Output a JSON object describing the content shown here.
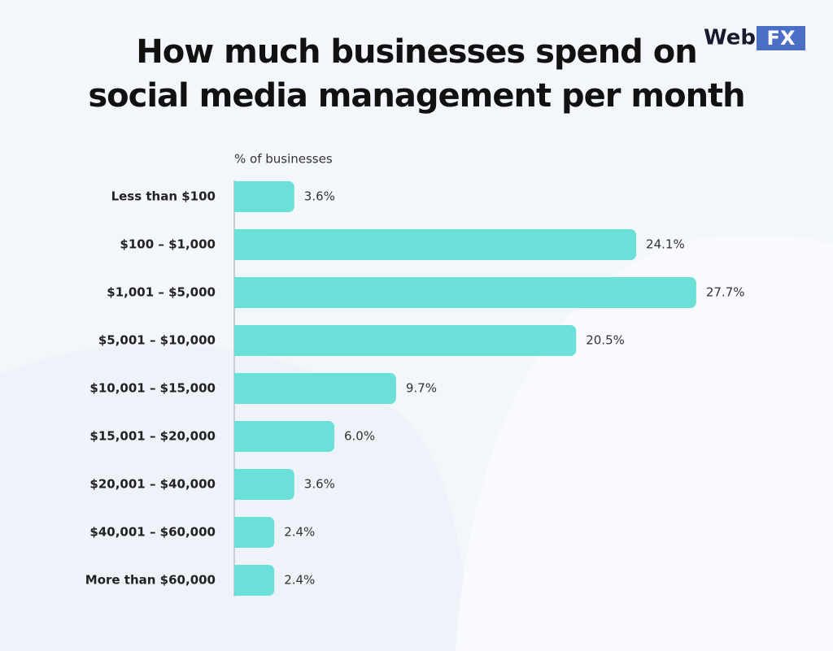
{
  "brand": [
    "Web",
    "FX"
  ],
  "chart_data": {
    "type": "bar",
    "orientation": "horizontal",
    "title": [
      "How much businesses spend on",
      "social media management per month"
    ],
    "axis_label": "% of businesses",
    "categories": [
      "Less than $100",
      "$100 – $1,000",
      "$1,001 – $5,000",
      "$5,001 – $10,000",
      "$10,001 – $15,000",
      "$15,001 – $20,000",
      "$20,001 – $40,000",
      "$40,001 – $60,000",
      "More than $60,000"
    ],
    "values": [
      3.6,
      24.1,
      27.7,
      20.5,
      9.7,
      6.0,
      3.6,
      2.4,
      2.4
    ],
    "value_labels": [
      "3.6%",
      "24.1%",
      "27.7%",
      "20.5%",
      "9.7%",
      "6.0%",
      "3.6%",
      "2.4%",
      "2.4%"
    ],
    "color": "#6ae0d8"
  }
}
